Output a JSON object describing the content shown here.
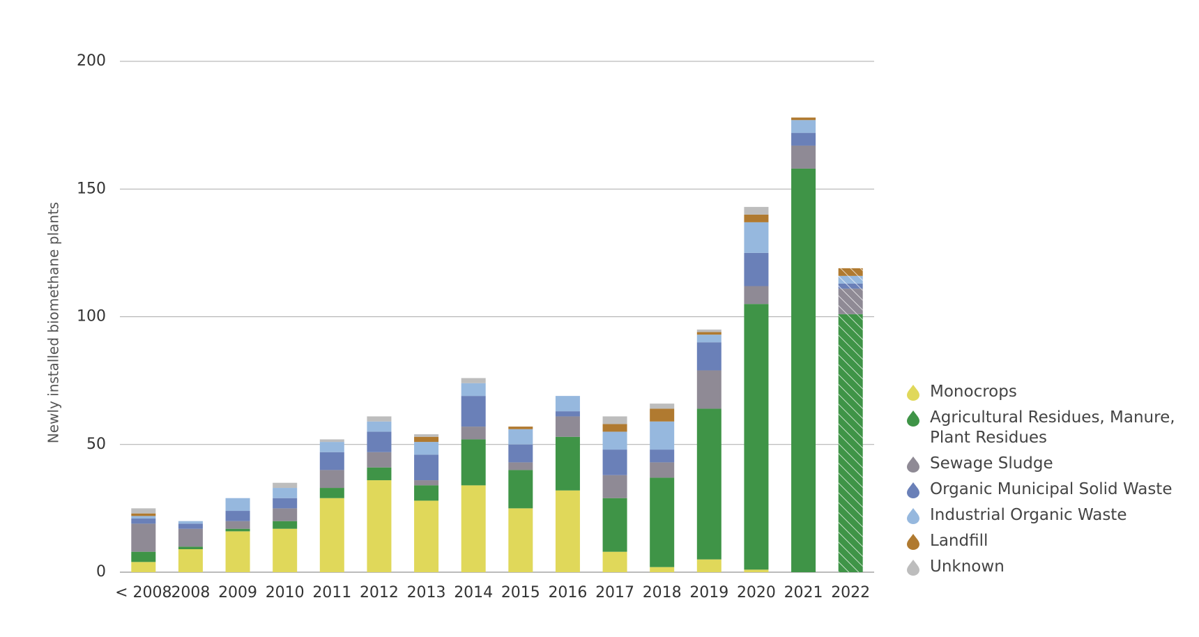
{
  "chart_data": {
    "type": "stacked_bar",
    "y_label": "Newly installed biomethane plants",
    "categories": [
      "< 2008",
      "2008",
      "2009",
      "2010",
      "2011",
      "2012",
      "2013",
      "2014",
      "2015",
      "2016",
      "2017",
      "2018",
      "2019",
      "2020",
      "2021",
      "2022"
    ],
    "series": [
      {
        "name": "Monocrops",
        "color": "#e0d85a",
        "values": [
          4,
          9,
          16,
          17,
          29,
          36,
          28,
          34,
          25,
          32,
          8,
          2,
          5,
          1,
          0,
          0
        ]
      },
      {
        "name": "Agricultural Residues, Manure, Plant Residues",
        "color": "#3f9447",
        "values": [
          4,
          1,
          1,
          3,
          4,
          5,
          6,
          18,
          15,
          21,
          21,
          35,
          59,
          104,
          158,
          101
        ]
      },
      {
        "name": "Sewage Sludge",
        "color": "#8f8a95",
        "values": [
          11,
          7,
          3,
          5,
          7,
          6,
          2,
          5,
          3,
          8,
          9,
          6,
          15,
          7,
          9,
          10
        ]
      },
      {
        "name": "Organic Municipal Solid Waste",
        "color": "#6a80b8",
        "values": [
          2,
          2,
          4,
          4,
          7,
          8,
          10,
          12,
          7,
          2,
          10,
          5,
          11,
          13,
          5,
          2
        ]
      },
      {
        "name": "Industrial Organic Waste",
        "color": "#96b8de",
        "values": [
          1,
          1,
          5,
          4,
          4,
          4,
          5,
          5,
          6,
          6,
          7,
          11,
          3,
          12,
          5,
          3
        ]
      },
      {
        "name": "Landfill",
        "color": "#b07a30",
        "values": [
          1,
          0,
          0,
          0,
          0,
          0,
          2,
          0,
          1,
          0,
          3,
          5,
          1,
          3,
          1,
          3
        ]
      },
      {
        "name": "Unknown",
        "color": "#bdbdbd",
        "values": [
          2,
          0,
          0,
          2,
          1,
          2,
          1,
          2,
          0,
          0,
          3,
          2,
          1,
          3,
          0,
          0
        ]
      }
    ],
    "hatched_categories": [
      "2022"
    ],
    "ylim": [
      0,
      200
    ],
    "yticks": [
      0,
      50,
      100,
      150,
      200
    ],
    "grid": true,
    "legend": "right"
  }
}
